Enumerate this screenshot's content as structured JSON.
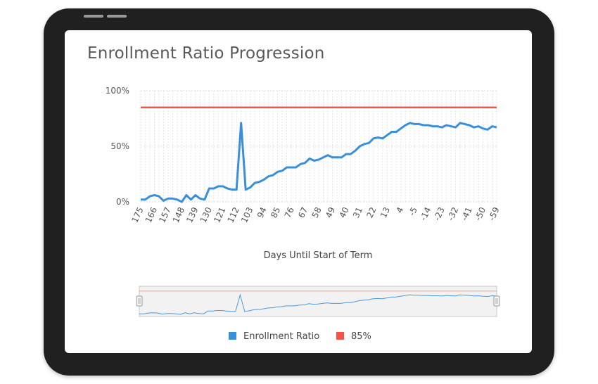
{
  "title": "Enrollment Ratio Progression",
  "chart_data": {
    "type": "line",
    "title": "Enrollment Ratio Progression",
    "xlabel": "Days Until Start of Term",
    "ylabel": "",
    "ylim": [
      0,
      100
    ],
    "y_ticks": [
      "0%",
      "50%",
      "100%"
    ],
    "x_tick_labels": [
      "175",
      "166",
      "157",
      "148",
      "139",
      "130",
      "121",
      "112",
      "103",
      "94",
      "85",
      "76",
      "67",
      "58",
      "49",
      "40",
      "31",
      "22",
      "13",
      "4",
      "-5",
      "-14",
      "-23",
      "-32",
      "-41",
      "-50",
      "-59"
    ],
    "x": [
      175,
      172,
      169,
      166,
      163,
      160,
      157,
      154,
      151,
      148,
      145,
      142,
      139,
      136,
      133,
      130,
      127,
      124,
      121,
      118,
      115,
      112,
      109,
      106,
      103,
      100,
      97,
      94,
      91,
      88,
      85,
      82,
      79,
      76,
      73,
      70,
      67,
      64,
      61,
      58,
      55,
      52,
      49,
      46,
      43,
      40,
      37,
      34,
      31,
      28,
      25,
      22,
      19,
      16,
      13,
      10,
      7,
      4,
      1,
      -2,
      -5,
      -8,
      -11,
      -14,
      -17,
      -20,
      -23,
      -26,
      -29,
      -32,
      -35,
      -38,
      -41,
      -44,
      -47,
      -50,
      -53,
      -56,
      -59
    ],
    "series": [
      {
        "name": "Enrollment Ratio",
        "color": "#3a8fd9",
        "values": [
          2,
          2,
          5,
          6,
          5,
          1,
          3,
          3,
          2,
          0,
          6,
          2,
          6,
          3,
          2,
          12,
          12,
          14,
          14,
          12,
          11,
          11,
          71,
          11,
          13,
          17,
          18,
          20,
          23,
          24,
          27,
          28,
          31,
          31,
          31,
          34,
          35,
          39,
          37,
          38,
          40,
          42,
          40,
          40,
          40,
          43,
          43,
          46,
          50,
          52,
          53,
          57,
          58,
          57,
          60,
          63,
          63,
          66,
          69,
          71,
          70,
          70,
          69,
          69,
          68,
          68,
          67,
          69,
          68,
          67,
          71,
          70,
          69,
          67,
          68,
          66,
          65,
          68,
          67
        ]
      },
      {
        "name": "85%",
        "color": "#f05545",
        "values": [
          85,
          85,
          85,
          85,
          85,
          85,
          85,
          85,
          85,
          85,
          85,
          85,
          85,
          85,
          85,
          85,
          85,
          85,
          85,
          85,
          85,
          85,
          85,
          85,
          85,
          85,
          85,
          85,
          85,
          85,
          85,
          85,
          85,
          85,
          85,
          85,
          85,
          85,
          85,
          85,
          85,
          85,
          85,
          85,
          85,
          85,
          85,
          85,
          85,
          85,
          85,
          85,
          85,
          85,
          85,
          85,
          85,
          85,
          85,
          85,
          85,
          85,
          85,
          85,
          85,
          85,
          85,
          85,
          85,
          85,
          85,
          85,
          85,
          85,
          85,
          85,
          85,
          85,
          85
        ]
      }
    ],
    "grid": true,
    "legend_position": "bottom",
    "navigator": true
  }
}
